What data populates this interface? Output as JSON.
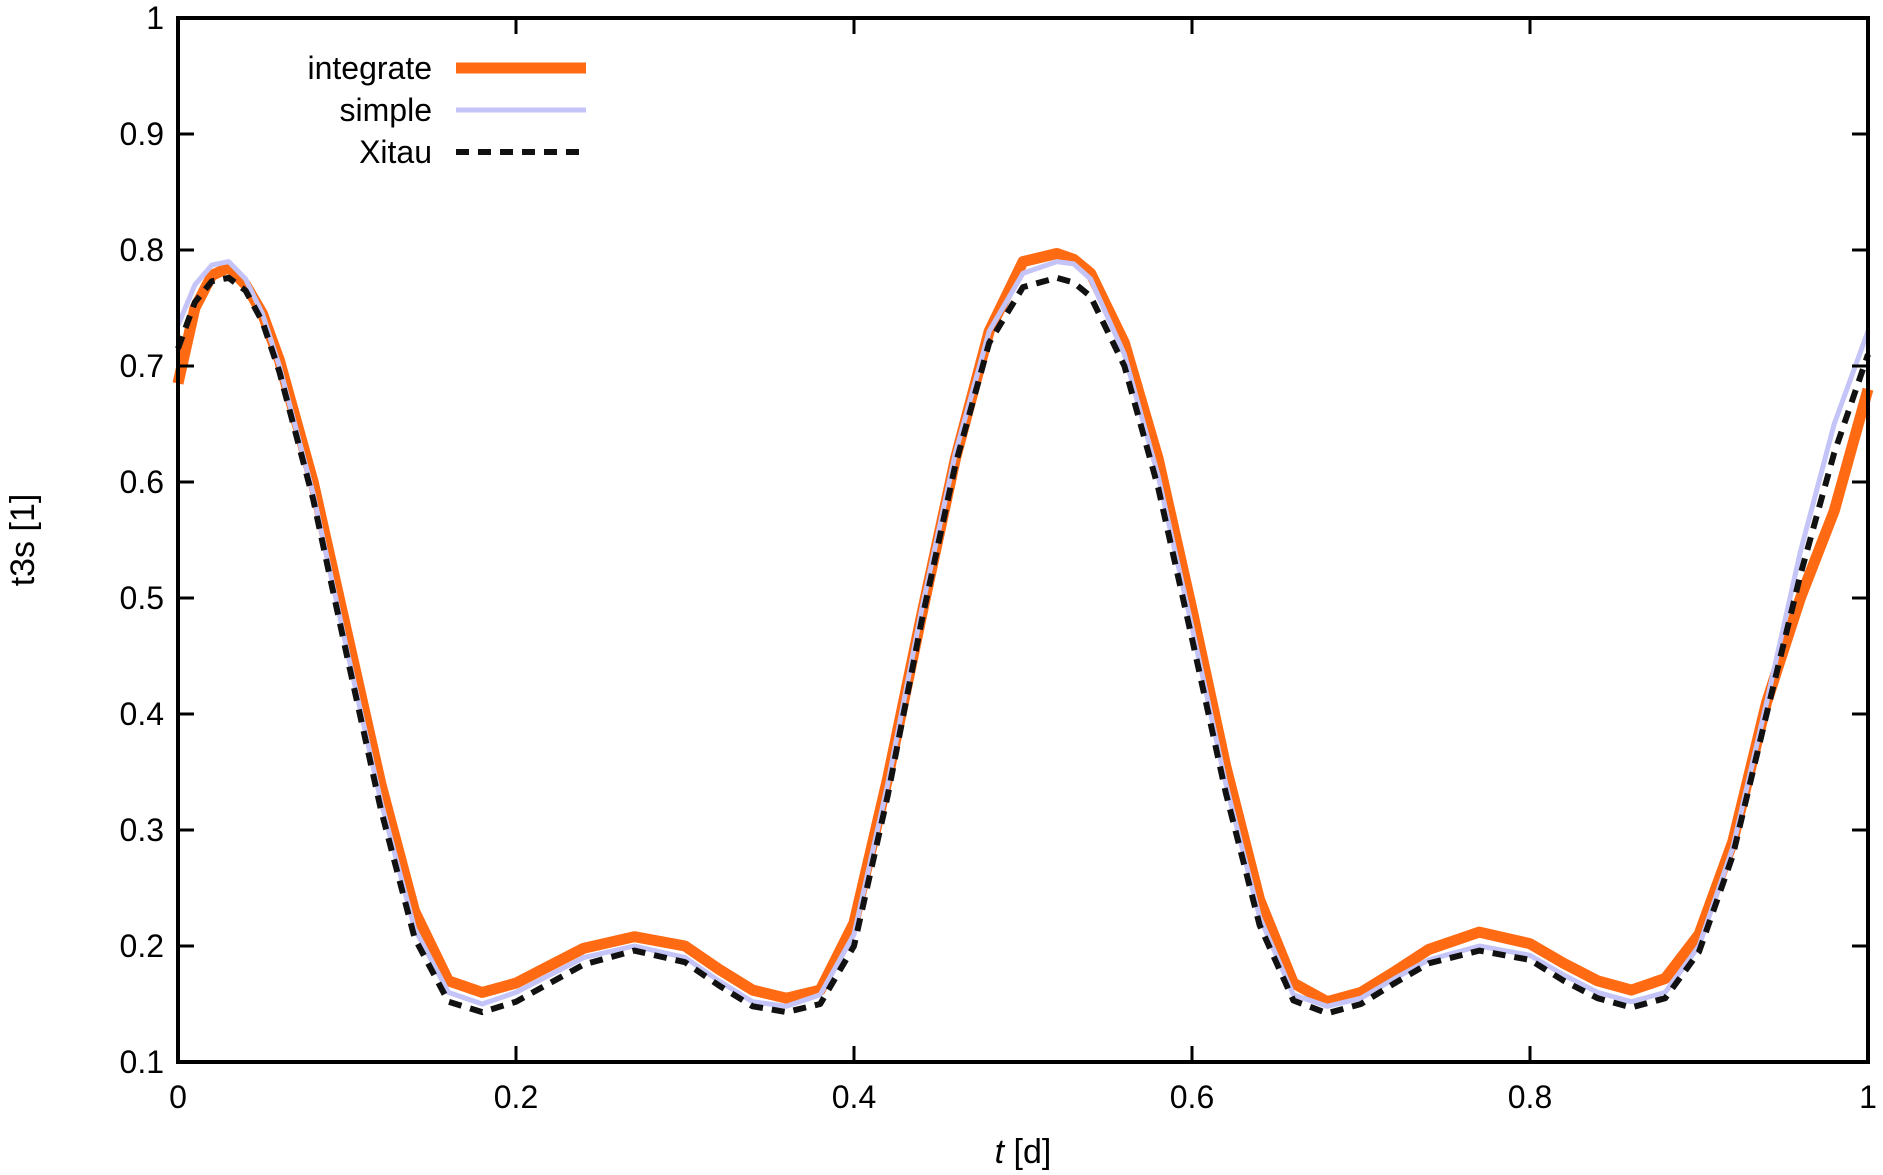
{
  "chart_data": {
    "type": "line",
    "title": "",
    "xlabel_var": "t",
    "xlabel_unit": " [d]",
    "ylabel": "t3s [1]",
    "xlim": [
      0,
      1
    ],
    "ylim": [
      0.1,
      1
    ],
    "xticks": [
      0,
      0.2,
      0.4,
      0.6,
      0.8,
      1
    ],
    "xtick_labels": [
      "0",
      "0.2",
      "0.4",
      "0.6",
      "0.8",
      "1"
    ],
    "yticks": [
      0.1,
      0.2,
      0.3,
      0.4,
      0.5,
      0.6,
      0.7,
      0.8,
      0.9,
      1
    ],
    "ytick_labels": [
      "0.1",
      "0.2",
      "0.3",
      "0.4",
      "0.5",
      "0.6",
      "0.7",
      "0.8",
      "0.9",
      "1"
    ],
    "grid": false,
    "legend_position": "top-left",
    "x": [
      0,
      0.01,
      0.02,
      0.03,
      0.04,
      0.05,
      0.06,
      0.08,
      0.1,
      0.12,
      0.14,
      0.16,
      0.18,
      0.2,
      0.22,
      0.24,
      0.27,
      0.3,
      0.32,
      0.34,
      0.36,
      0.38,
      0.4,
      0.42,
      0.44,
      0.46,
      0.48,
      0.5,
      0.52,
      0.53,
      0.54,
      0.56,
      0.58,
      0.6,
      0.62,
      0.64,
      0.66,
      0.68,
      0.7,
      0.72,
      0.74,
      0.77,
      0.8,
      0.82,
      0.84,
      0.86,
      0.88,
      0.9,
      0.92,
      0.94,
      0.96,
      0.98,
      1.0
    ],
    "series": [
      {
        "name": "integrate",
        "color": "#ff6a13",
        "style": "thick",
        "values": [
          0.685,
          0.75,
          0.778,
          0.785,
          0.77,
          0.745,
          0.705,
          0.6,
          0.47,
          0.34,
          0.23,
          0.17,
          0.16,
          0.168,
          0.183,
          0.198,
          0.208,
          0.2,
          0.18,
          0.162,
          0.155,
          0.162,
          0.22,
          0.345,
          0.485,
          0.62,
          0.73,
          0.79,
          0.797,
          0.792,
          0.78,
          0.72,
          0.62,
          0.49,
          0.355,
          0.24,
          0.168,
          0.152,
          0.16,
          0.178,
          0.197,
          0.212,
          0.202,
          0.185,
          0.17,
          0.162,
          0.172,
          0.21,
          0.29,
          0.41,
          0.5,
          0.575,
          0.68
        ]
      },
      {
        "name": "simple",
        "color": "#c4c4f8",
        "style": "thin",
        "values": [
          0.735,
          0.77,
          0.787,
          0.79,
          0.775,
          0.745,
          0.7,
          0.59,
          0.455,
          0.325,
          0.215,
          0.16,
          0.15,
          0.16,
          0.175,
          0.19,
          0.2,
          0.19,
          0.17,
          0.152,
          0.148,
          0.158,
          0.21,
          0.34,
          0.49,
          0.625,
          0.73,
          0.78,
          0.79,
          0.788,
          0.775,
          0.71,
          0.605,
          0.475,
          0.34,
          0.225,
          0.158,
          0.148,
          0.155,
          0.172,
          0.188,
          0.2,
          0.192,
          0.175,
          0.16,
          0.152,
          0.16,
          0.2,
          0.285,
          0.41,
          0.54,
          0.65,
          0.73
        ]
      },
      {
        "name": "Xitau",
        "color": "#111111",
        "style": "dashed",
        "values": [
          0.715,
          0.755,
          0.773,
          0.776,
          0.765,
          0.738,
          0.695,
          0.585,
          0.45,
          0.318,
          0.207,
          0.152,
          0.143,
          0.152,
          0.168,
          0.184,
          0.196,
          0.186,
          0.166,
          0.148,
          0.143,
          0.15,
          0.2,
          0.33,
          0.48,
          0.615,
          0.72,
          0.768,
          0.776,
          0.772,
          0.76,
          0.7,
          0.595,
          0.465,
          0.332,
          0.218,
          0.153,
          0.142,
          0.15,
          0.168,
          0.185,
          0.196,
          0.188,
          0.17,
          0.155,
          0.147,
          0.155,
          0.195,
          0.278,
          0.4,
          0.52,
          0.625,
          0.71
        ]
      }
    ]
  }
}
